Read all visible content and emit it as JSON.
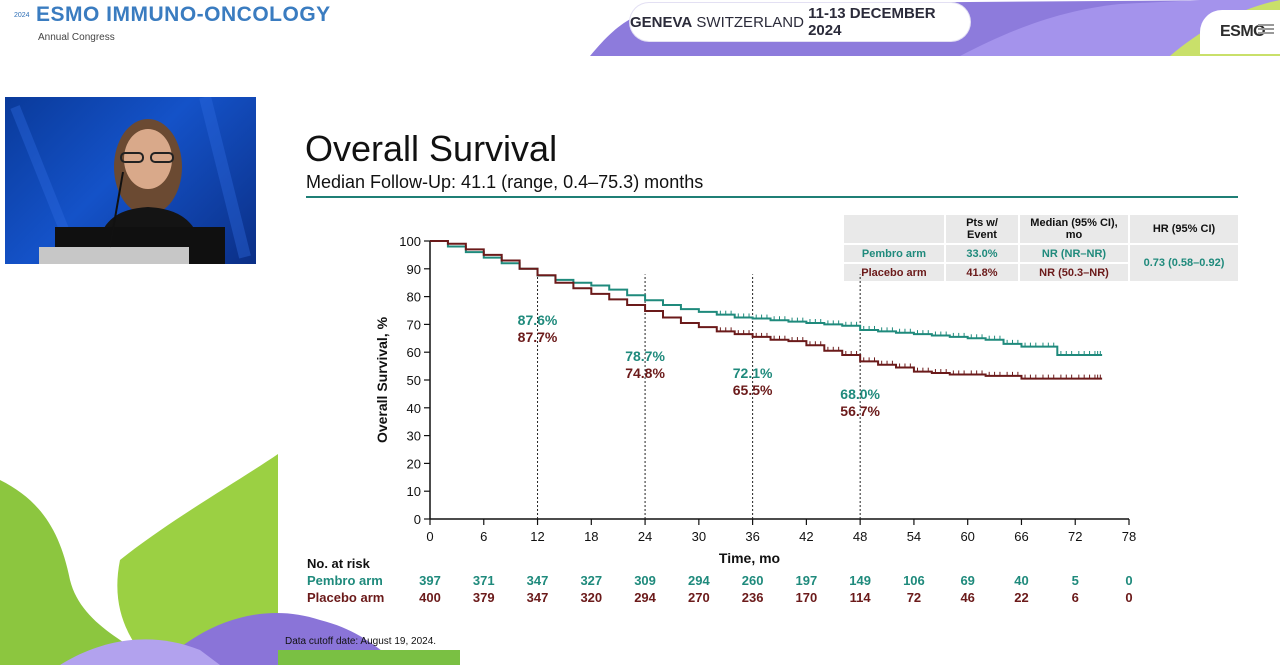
{
  "header": {
    "logo_year": "2024",
    "logo_title": "ESMO IMMUNO-ONCOLOGY",
    "logo_subtitle": "Annual Congress",
    "location_bold": "GENEVA",
    "location_rest": "SWITZERLAND",
    "dates": "11-13 DECEMBER 2024",
    "badge_text": "ESMO"
  },
  "slide": {
    "title": "Overall Survival",
    "subtitle": "Median Follow-Up: 41.1 (range, 0.4–75.3) months",
    "cutoff": "Data cutoff date: August 19, 2024."
  },
  "stats_table": {
    "headers": [
      "Pts w/ Event",
      "Median (95% CI), mo",
      "HR (95% CI)"
    ],
    "rows": [
      {
        "arm": "Pembro arm",
        "events": "33.0%",
        "median": "NR (NR–NR)"
      },
      {
        "arm": "Placebo arm",
        "events": "41.8%",
        "median": "NR (50.3–NR)"
      }
    ],
    "hr": "0.73 (0.58–0.92)"
  },
  "colors": {
    "pembro": "#1f8a7c",
    "placebo": "#6b1a1a",
    "accent_rule": "#1f7f76"
  },
  "chart_data": {
    "type": "line",
    "title": "Overall Survival",
    "xlabel": "Time, mo",
    "ylabel": "Overall Survival, %",
    "xlim": [
      0,
      78
    ],
    "ylim": [
      0,
      100
    ],
    "x_ticks": [
      0,
      6,
      12,
      18,
      24,
      30,
      36,
      42,
      48,
      54,
      60,
      66,
      72,
      78
    ],
    "y_ticks": [
      0,
      10,
      20,
      30,
      40,
      50,
      60,
      70,
      80,
      90,
      100
    ],
    "series": [
      {
        "name": "Pembro arm",
        "x": [
          0,
          2,
          4,
          6,
          8,
          10,
          12,
          14,
          16,
          18,
          20,
          22,
          24,
          26,
          28,
          30,
          32,
          34,
          36,
          38,
          40,
          42,
          44,
          46,
          48,
          50,
          52,
          54,
          56,
          58,
          60,
          62,
          64,
          66,
          68,
          70,
          72,
          74,
          75
        ],
        "values": [
          100,
          98,
          96,
          94,
          92,
          90,
          87.6,
          86,
          85,
          84,
          82.5,
          80.5,
          78.7,
          77,
          75.5,
          74.5,
          73.5,
          72.5,
          72.1,
          71.5,
          71,
          70.5,
          70,
          69.5,
          68,
          67.5,
          67,
          66.5,
          66,
          65.5,
          65,
          64.5,
          63,
          62,
          62,
          59,
          59,
          59,
          59
        ]
      },
      {
        "name": "Placebo arm",
        "x": [
          0,
          2,
          4,
          6,
          8,
          10,
          12,
          14,
          16,
          18,
          20,
          22,
          24,
          26,
          28,
          30,
          32,
          34,
          36,
          38,
          40,
          42,
          44,
          46,
          48,
          50,
          52,
          54,
          56,
          58,
          60,
          62,
          64,
          66,
          68,
          70,
          72,
          74,
          75
        ],
        "values": [
          100,
          99,
          97,
          95,
          93,
          90,
          87.7,
          85,
          83,
          81,
          79,
          77,
          74.8,
          72.5,
          70.5,
          69,
          67.5,
          66.5,
          65.5,
          64.5,
          64,
          62.5,
          60.5,
          59,
          56.7,
          55.5,
          54.5,
          53,
          52.5,
          52,
          52,
          51.5,
          51.5,
          50.5,
          50.5,
          50.5,
          50.5,
          50.5,
          50.5
        ]
      }
    ],
    "landmarks": [
      {
        "x": 12,
        "pembro": "87.6%",
        "placebo": "87.7%"
      },
      {
        "x": 24,
        "pembro": "78.7%",
        "placebo": "74.8%"
      },
      {
        "x": 36,
        "pembro": "72.1%",
        "placebo": "65.5%"
      },
      {
        "x": 48,
        "pembro": "68.0%",
        "placebo": "56.7%"
      }
    ]
  },
  "at_risk": {
    "title": "No. at risk",
    "times": [
      0,
      6,
      12,
      18,
      24,
      30,
      36,
      42,
      48,
      54,
      60,
      66,
      72,
      78
    ],
    "rows": [
      {
        "label": "Pembro arm",
        "values": [
          "397",
          "371",
          "347",
          "327",
          "309",
          "294",
          "260",
          "197",
          "149",
          "106",
          "69",
          "40",
          "5",
          "0"
        ]
      },
      {
        "label": "Placebo arm",
        "values": [
          "400",
          "379",
          "347",
          "320",
          "294",
          "270",
          "236",
          "170",
          "114",
          "72",
          "46",
          "22",
          "6",
          "0"
        ]
      }
    ]
  }
}
